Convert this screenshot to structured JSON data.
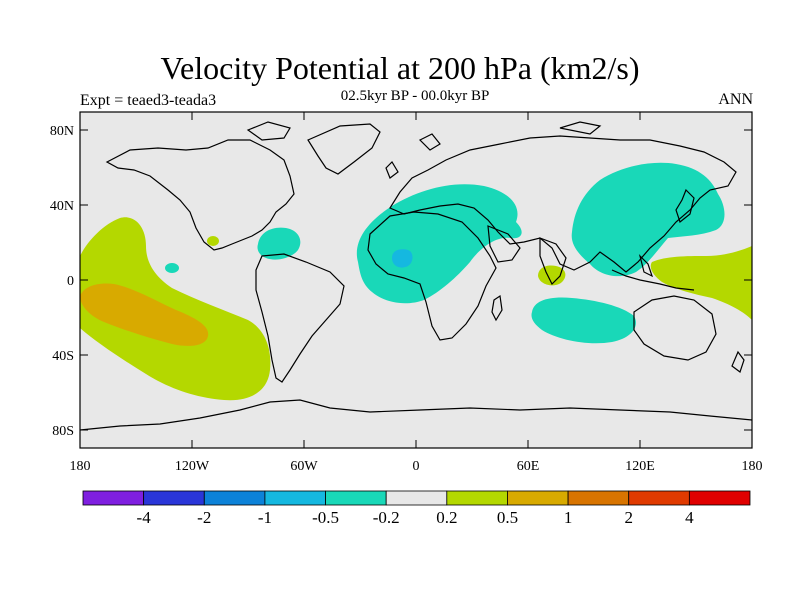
{
  "title": "Velocity Potential at 200 hPa (km2/s)",
  "subtitle": "02.5kyr BP - 00.0kyr BP",
  "experiment_label": "Expt = teaed3-teada3",
  "season_label": "ANN",
  "chart_data": {
    "type": "map",
    "title": "Velocity Potential at 200 hPa (km2/s)",
    "subtitle": "02.5kyr BP - 00.0kyr BP",
    "lon_range": [
      0,
      360
    ],
    "lat_range": [
      -90,
      90
    ],
    "x_ticks": [
      "180",
      "120W",
      "60W",
      "0",
      "60E",
      "120E",
      "180"
    ],
    "y_ticks": [
      "80N",
      "40N",
      "0",
      "40S",
      "80S"
    ],
    "colorbar": {
      "levels": [
        "-4",
        "-2",
        "-1",
        "-0.5",
        "-0.2",
        "0.2",
        "0.5",
        "1",
        "2",
        "4"
      ],
      "colors": [
        "#7f1fe0",
        "#2a36d8",
        "#0c82d8",
        "#15b8e0",
        "#19d8b8",
        "#e8e8e8",
        "#b4d800",
        "#d8aa00",
        "#d87400",
        "#e03a00",
        "#e00000"
      ]
    },
    "regions": [
      {
        "name": "north-atlantic-africa-negative",
        "level": "-0.5 to -0.2",
        "color": "#19d8b8"
      },
      {
        "name": "west-africa-core",
        "level": "-1 to -0.5",
        "color": "#15b8e0"
      },
      {
        "name": "east-asia-negative",
        "level": "-0.5 to -0.2",
        "color": "#19d8b8"
      },
      {
        "name": "caribbean-negative",
        "level": "-0.5 to -0.2",
        "color": "#19d8b8"
      },
      {
        "name": "south-indian-ocean-negative",
        "level": "-0.5 to -0.2",
        "color": "#19d8b8"
      },
      {
        "name": "east-pacific-positive",
        "level": "0.2 to 0.5",
        "color": "#b4d800"
      },
      {
        "name": "east-pacific-core",
        "level": "0.5 to 1",
        "color": "#d8aa00"
      },
      {
        "name": "west-pacific-positive",
        "level": "0.2 to 0.5",
        "color": "#b4d800"
      },
      {
        "name": "indian-ocean-positive",
        "level": "0.2 to 0.5",
        "color": "#b4d800"
      }
    ]
  }
}
